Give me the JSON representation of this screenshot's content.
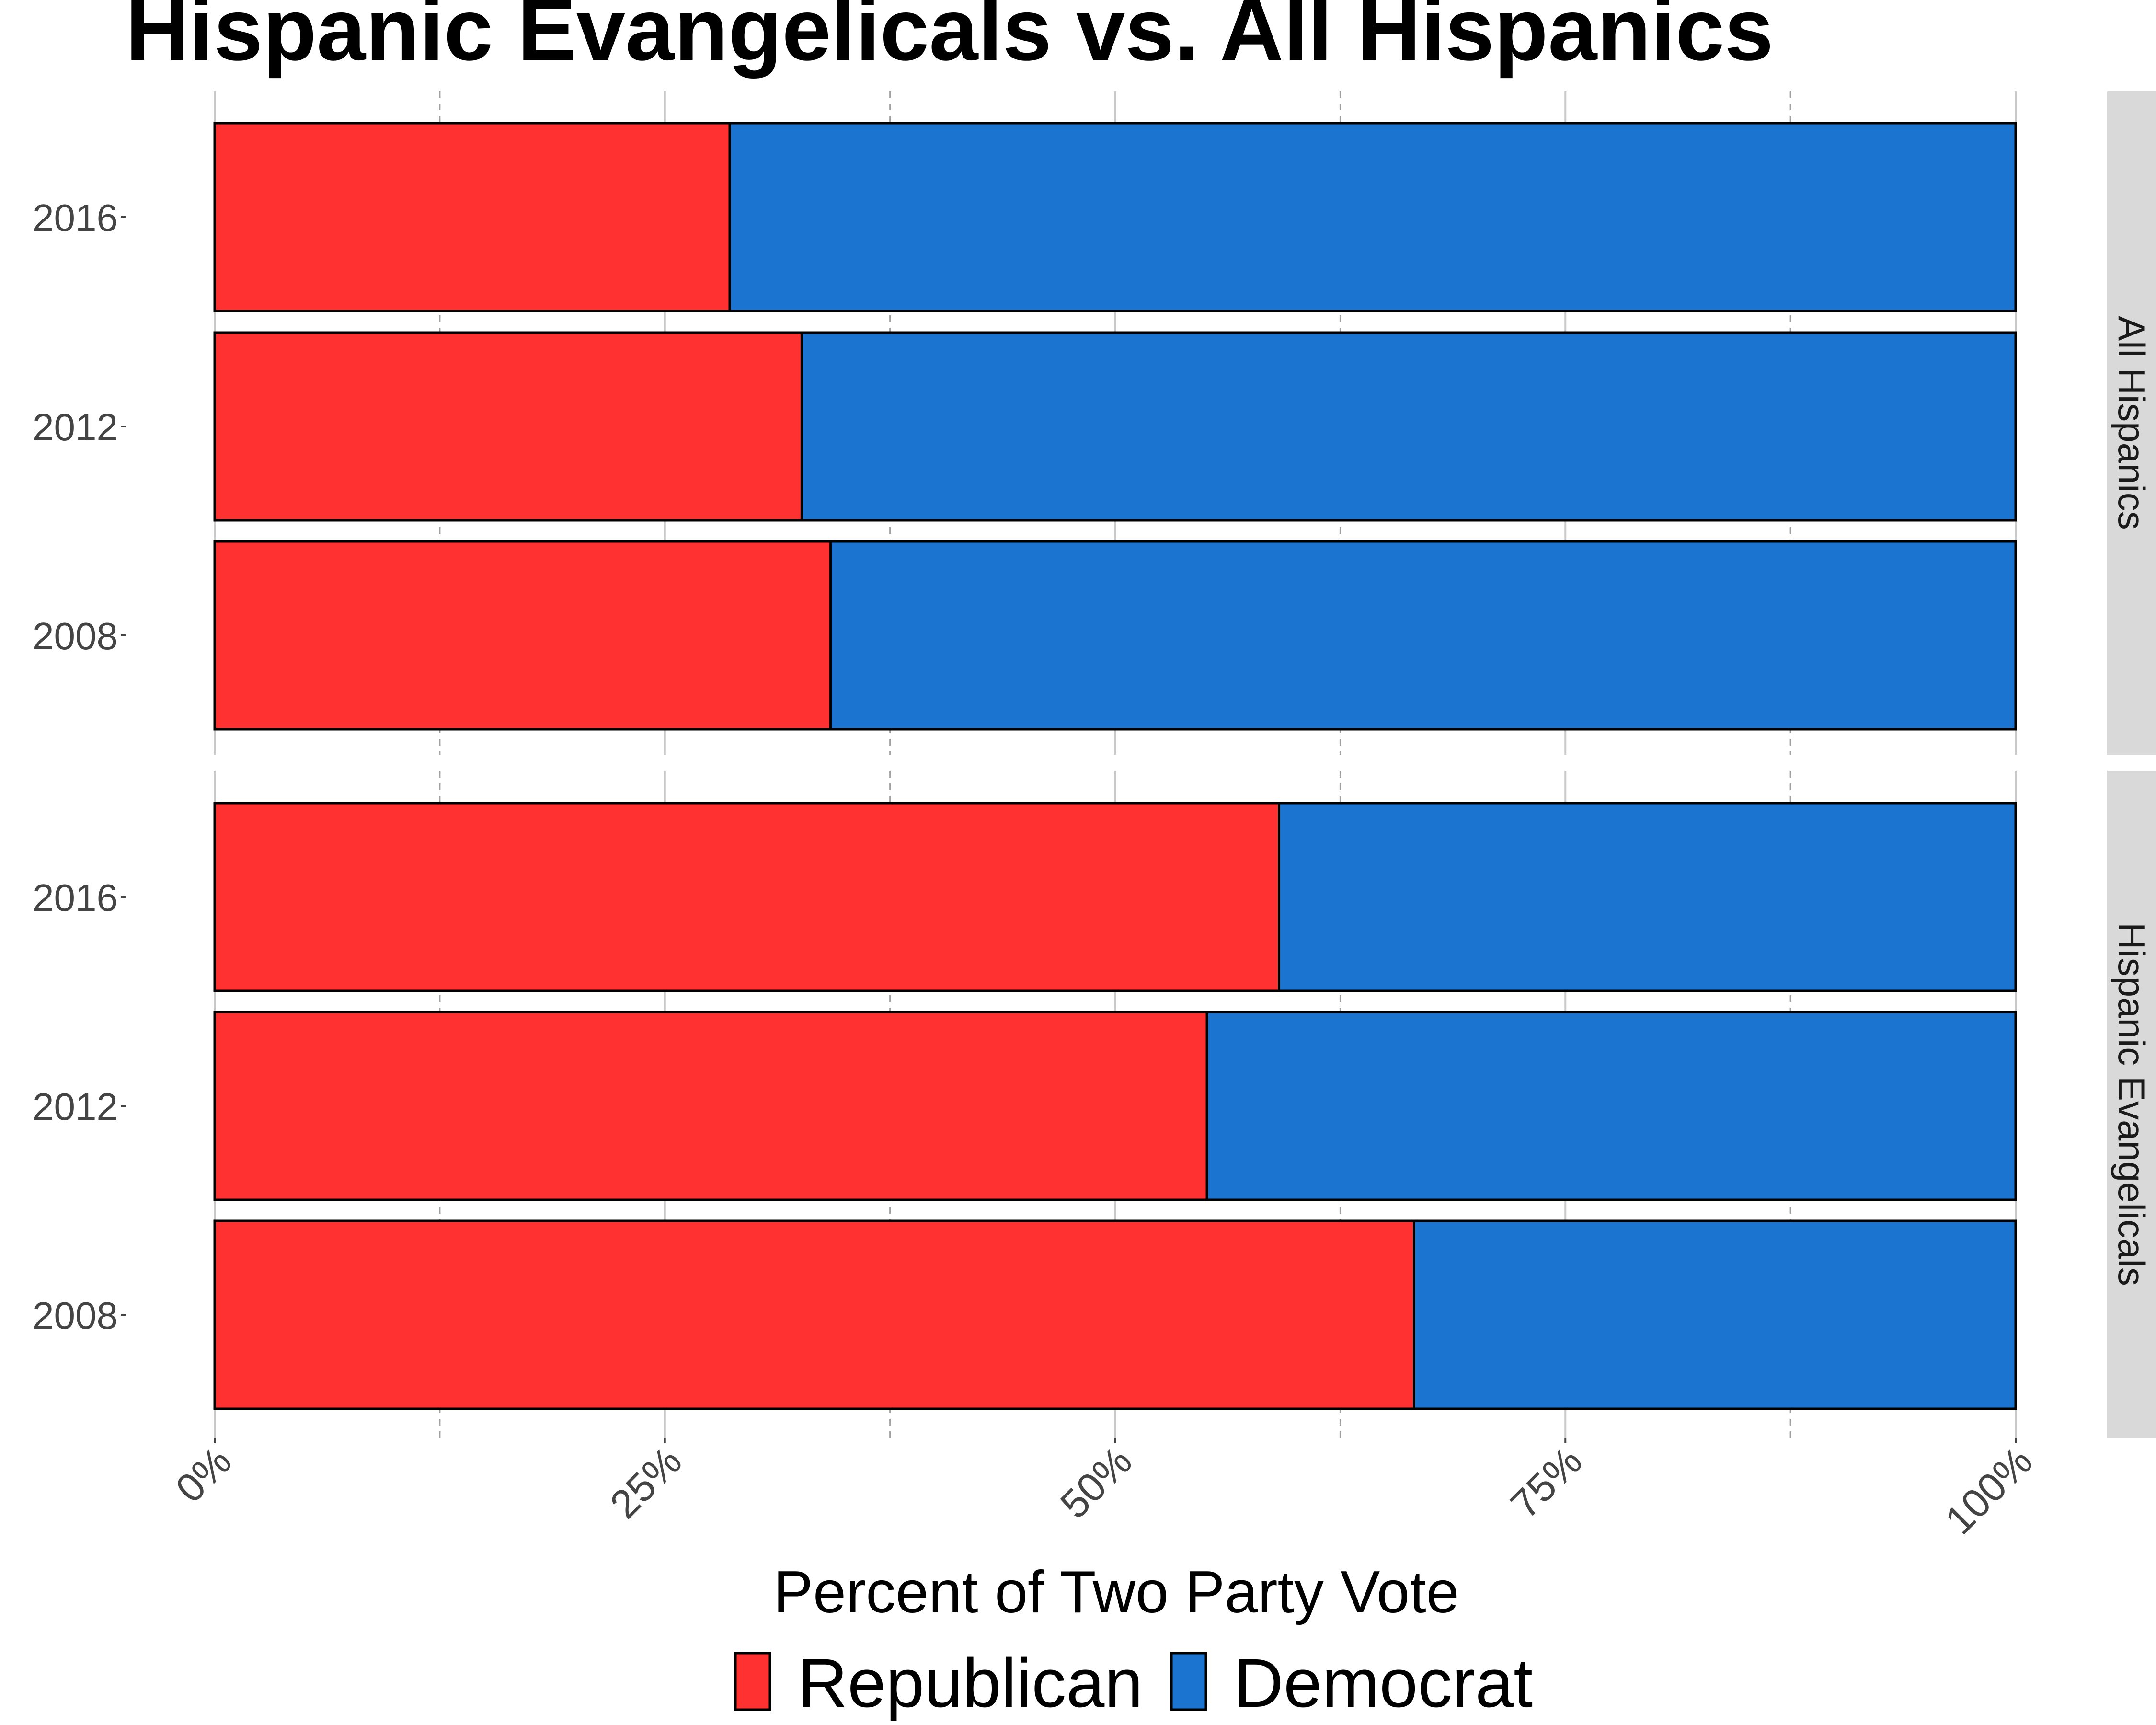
{
  "chart_data": {
    "type": "bar",
    "orientation": "horizontal",
    "stacked": true,
    "title": "Hispanic Evangelicals vs. All Hispanics",
    "xlabel": "Percent of Two Party Vote",
    "ylabel": "",
    "xlim": [
      0,
      100
    ],
    "x_ticks": [
      "0%",
      "25%",
      "50%",
      "75%",
      "100%"
    ],
    "legend_position": "bottom",
    "grid": "vertical dashed",
    "colors": {
      "Republican": "#ff3131",
      "Democrat": "#1b75d0"
    },
    "legend": [
      "Republican",
      "Democrat"
    ],
    "facets": [
      {
        "name": "All Hispanics",
        "categories": [
          "2016",
          "2012",
          "2008"
        ],
        "series": [
          {
            "name": "Republican",
            "values": [
              28.6,
              32.6,
              34.2
            ]
          },
          {
            "name": "Democrat",
            "values": [
              71.4,
              67.4,
              65.8
            ]
          }
        ]
      },
      {
        "name": "Hispanic Evangelicals",
        "categories": [
          "2016",
          "2012",
          "2008"
        ],
        "series": [
          {
            "name": "Republican",
            "values": [
              59.1,
              55.1,
              66.6
            ]
          },
          {
            "name": "Democrat",
            "values": [
              40.9,
              44.9,
              33.4
            ]
          }
        ]
      }
    ]
  }
}
